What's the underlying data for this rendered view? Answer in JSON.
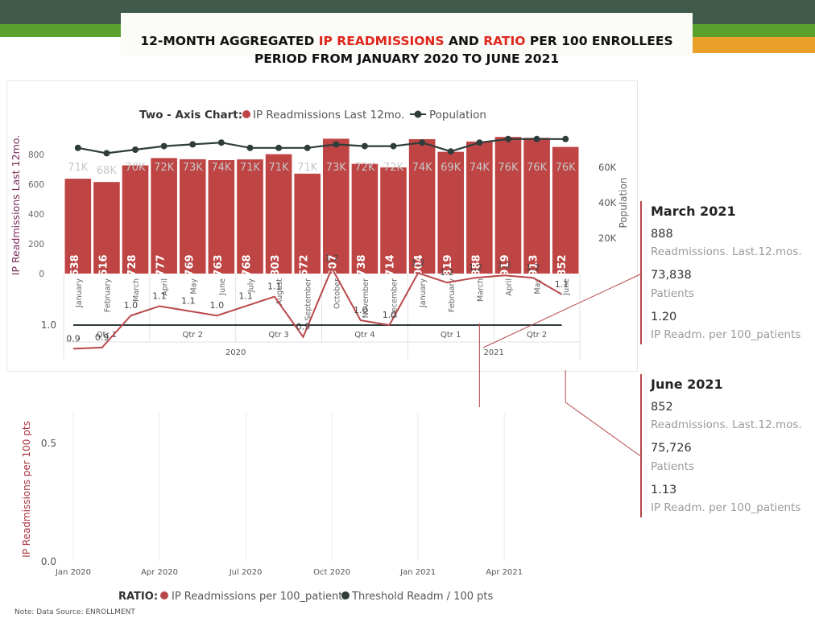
{
  "header": {
    "title_line1_a": "12-MONTH AGGREGATED ",
    "title_line1_b": "IP READMISSIONS",
    "title_line1_c": " AND ",
    "title_line1_d": "RATIO",
    "title_line1_e": " PER 100 ENROLLEES",
    "title_line2": "PERIOD FROM  JANUARY 2020 TO JUNE 2021",
    "accent_red": "#e0261c",
    "band_dark": "#3f5a4a",
    "band_green": "#5aa02c",
    "band_orange": "#e8a02a"
  },
  "chart_data": [
    {
      "type": "bar",
      "legend_title": "Two - Axis Chart:",
      "legend_position": "top",
      "categories": [
        "January",
        "February",
        "March",
        "April",
        "May",
        "June",
        "July",
        "August",
        "September",
        "October",
        "November",
        "December",
        "January",
        "February",
        "March",
        "April",
        "May",
        "June"
      ],
      "quarters": [
        {
          "label": "Qtr 1",
          "span": 3
        },
        {
          "label": "Qtr 2",
          "span": 3
        },
        {
          "label": "Qtr 3",
          "span": 3
        },
        {
          "label": "Qtr 4",
          "span": 3
        },
        {
          "label": "Qtr 1",
          "span": 3
        },
        {
          "label": "Qtr 2",
          "span": 3
        }
      ],
      "years": [
        {
          "label": "2020",
          "span": 12
        },
        {
          "label": "2021",
          "span": 6
        }
      ],
      "ylabel": "IP Readmissions Last 12mo.",
      "y2label": "Population",
      "ylim": [
        0,
        920
      ],
      "yticks": [
        0,
        200,
        400,
        600,
        800
      ],
      "y2ticks": [
        {
          "value": 20000,
          "label": "20K"
        },
        {
          "value": 40000,
          "label": "40K"
        },
        {
          "value": 60000,
          "label": "60K"
        }
      ],
      "series": [
        {
          "name": "IP Readmissions Last 12mo.",
          "kind": "bar",
          "color": "#bf4444",
          "values": [
            638,
            616,
            728,
            777,
            769,
            763,
            768,
            803,
            672,
            907,
            738,
            714,
            904,
            819,
            888,
            919,
            913,
            852
          ]
        },
        {
          "name": "Population",
          "kind": "line",
          "color": "#2f3d3a",
          "values": [
            71000,
            68000,
            70000,
            72000,
            73000,
            74000,
            71000,
            71000,
            71000,
            73000,
            72000,
            72000,
            74000,
            69000,
            74000,
            76000,
            76000,
            76000
          ],
          "labels": [
            "71K",
            "68K",
            "70K",
            "72K",
            "73K",
            "74K",
            "71K",
            "71K",
            "71K",
            "73K",
            "72K",
            "72K",
            "74K",
            "69K",
            "74K",
            "76K",
            "76K",
            "76K"
          ]
        }
      ]
    },
    {
      "type": "line",
      "legend_title": "RATIO:",
      "legend_position": "bottom",
      "ylabel": "IP Readmissions per 100 pts",
      "ylim": [
        0,
        1.3
      ],
      "yticks": [
        {
          "value": 0,
          "label": "0.0"
        },
        {
          "value": 0.5,
          "label": "0.5"
        },
        {
          "value": 1.0,
          "label": "1.0"
        }
      ],
      "xticks": [
        "Jan 2020",
        "Apr 2020",
        "Jul 2020",
        "Oct 2020",
        "Jan 2021",
        "Apr 2021"
      ],
      "xtick_index": [
        0,
        3,
        6,
        9,
        12,
        15
      ],
      "series": [
        {
          "name": "IP Readmissions per 100_patients",
          "color": "#b9474a",
          "values": [
            0.9,
            0.905,
            1.04,
            1.08,
            1.06,
            1.04,
            1.08,
            1.12,
            0.95,
            1.24,
            1.02,
            1.0,
            1.22,
            1.18,
            1.2,
            1.21,
            1.2,
            1.13
          ],
          "labels": [
            "0.9",
            "0.9",
            "1.0",
            "1.1",
            "1.1",
            "1.0",
            "1.1",
            "1.1",
            "0.9",
            "1.2",
            "1.0",
            "1.0",
            "1.2",
            "1.2",
            "1.2",
            "1.2",
            "1.2",
            "1.1"
          ]
        },
        {
          "name": "Threshold Readm / 100 pts",
          "color": "#2f3d3a",
          "values": [
            1,
            1,
            1,
            1,
            1,
            1,
            1,
            1,
            1,
            1,
            1,
            1,
            1,
            1,
            1,
            1,
            1,
            1
          ]
        }
      ]
    }
  ],
  "cards": [
    {
      "title": "March 2021",
      "readm": "888",
      "readm_label": "Readmissions. Last.12.mos.",
      "patients": "73,838",
      "patients_label": "Patients",
      "ratio": "1.20",
      "ratio_label": "IP Readm. per 100_patients"
    },
    {
      "title": "June 2021",
      "readm": "852",
      "readm_label": "Readmissions. Last.12.mos.",
      "patients": "75,726",
      "patients_label": "Patients",
      "ratio": "1.13",
      "ratio_label": "IP Readm. per 100_patients"
    }
  ],
  "note": "Note: Data Source: ENROLLMENT"
}
